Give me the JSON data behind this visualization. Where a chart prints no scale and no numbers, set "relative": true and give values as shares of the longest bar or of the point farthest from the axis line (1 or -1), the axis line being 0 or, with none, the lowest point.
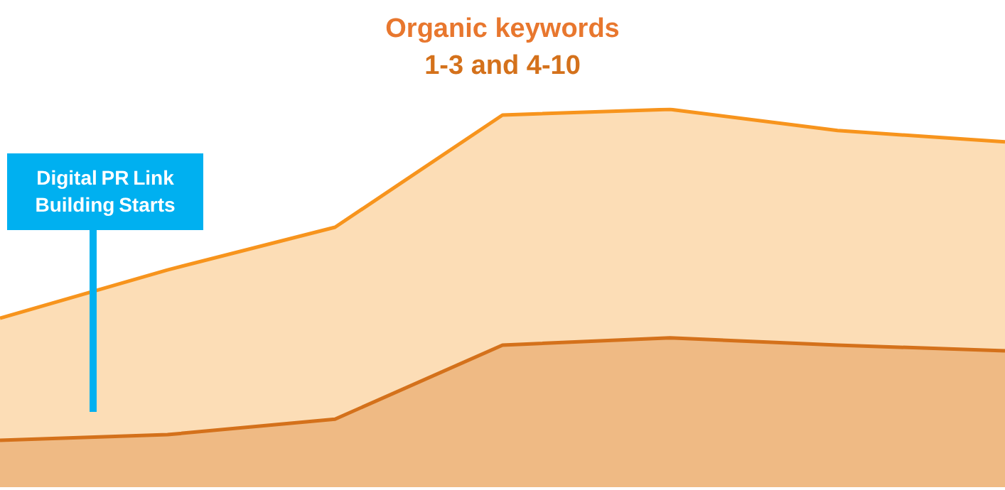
{
  "chart_data": {
    "type": "area",
    "title": "Organic keywords",
    "subtitle": "1-3 and 4-10",
    "relative": true,
    "marker": "none",
    "categories": [
      null,
      null,
      null,
      null,
      null,
      null,
      null
    ],
    "series": [
      {
        "color": "#f7941d",
        "values": [
          0.447,
          0.575,
          0.688,
          0.985,
          1,
          0.944,
          0.914
        ]
      },
      {
        "color": "#d4711b",
        "values": [
          0.124,
          0.139,
          0.18,
          0.376,
          0.395,
          0.376,
          0.361
        ]
      }
    ],
    "annotations": [
      "Digital PR Link Building Starts"
    ]
  }
}
